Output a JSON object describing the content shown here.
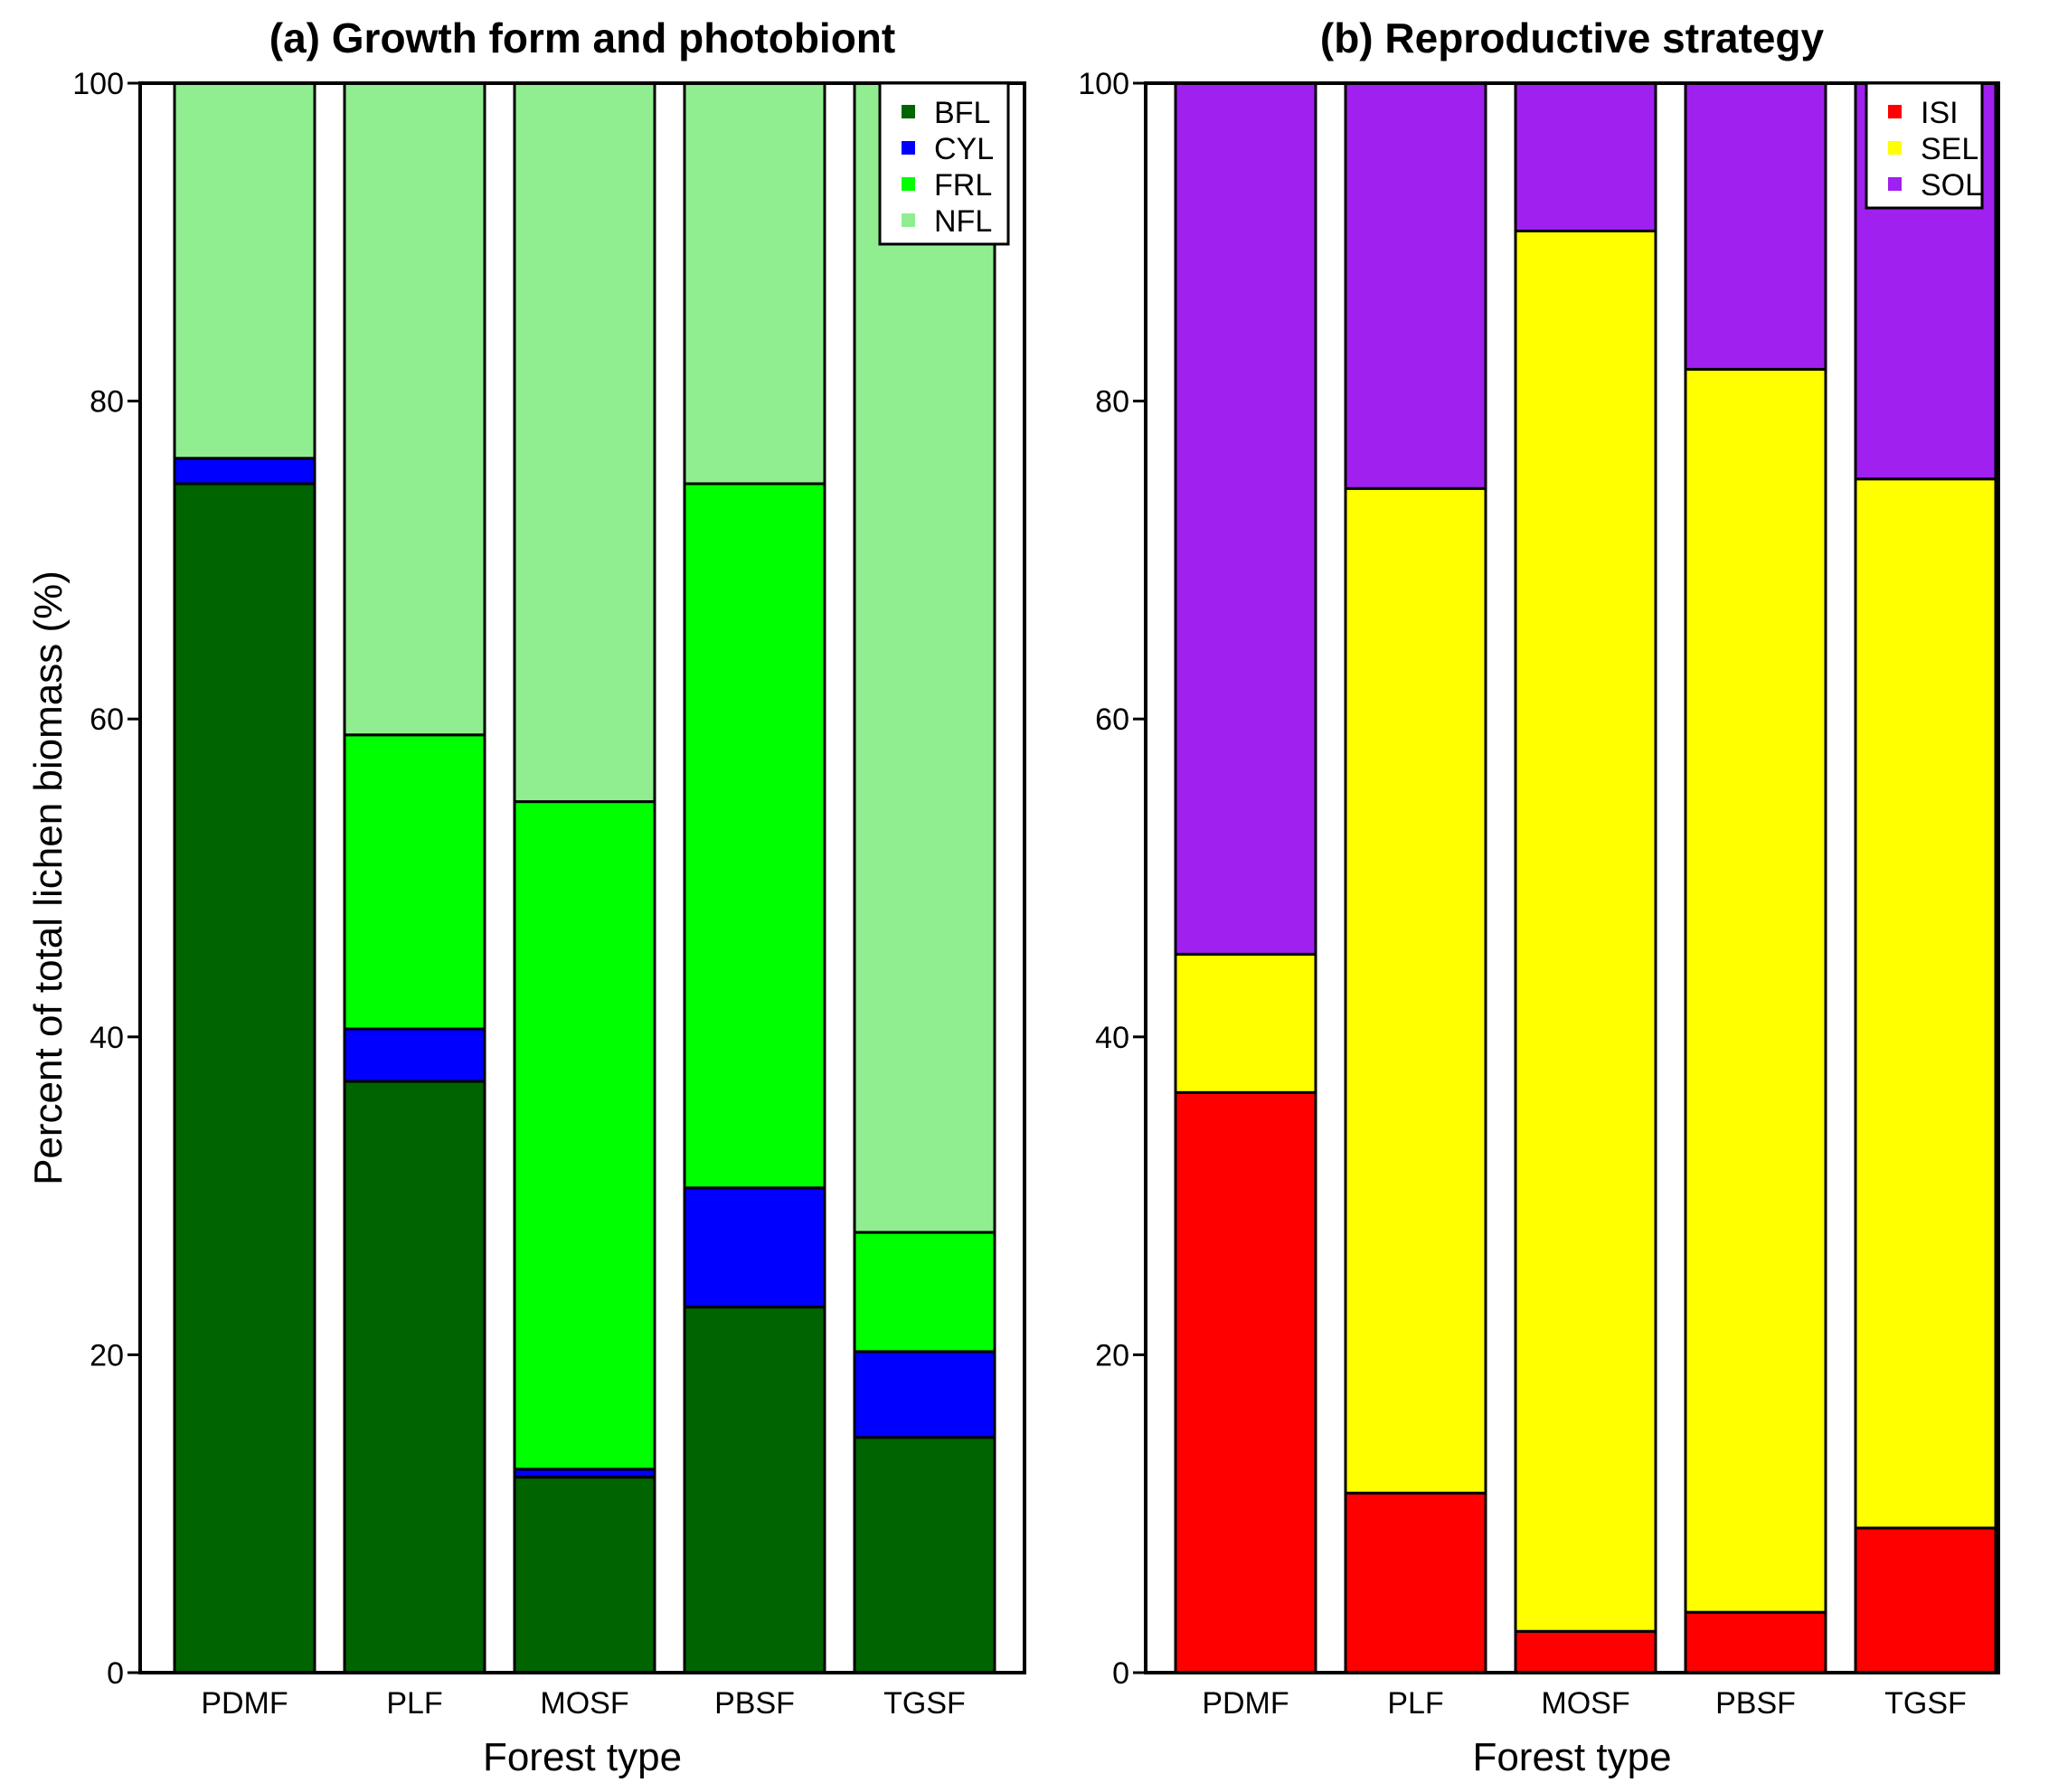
{
  "chart_data": [
    {
      "type": "bar",
      "stacked": true,
      "title": "(a) Growth form and photobiont",
      "xlabel": "Forest type",
      "ylabel": "Percent of total lichen biomass (%)",
      "ylim": [
        0,
        100
      ],
      "yticks": [
        "0",
        "20",
        "40",
        "60",
        "80",
        "100"
      ],
      "categories": [
        "PDMF",
        "PLF",
        "MOSF",
        "PBSF",
        "TGSF"
      ],
      "legend_position": "top-right",
      "series": [
        {
          "name": "BFL",
          "color": "#006400",
          "values": [
            74.8,
            37.2,
            12.3,
            23.0,
            14.8
          ]
        },
        {
          "name": "CYL",
          "color": "#0000ff",
          "values": [
            1.6,
            3.3,
            0.5,
            7.5,
            5.4
          ]
        },
        {
          "name": "FRL",
          "color": "#00ff00",
          "values": [
            0.0,
            18.5,
            42.0,
            44.3,
            7.5
          ]
        },
        {
          "name": "NFL",
          "color": "#90ee90",
          "values": [
            23.6,
            41.0,
            45.2,
            25.2,
            72.3
          ]
        }
      ]
    },
    {
      "type": "bar",
      "stacked": true,
      "title": "(b) Reproductive strategy",
      "xlabel": "Forest type",
      "ylabel": "",
      "ylim": [
        0,
        100
      ],
      "yticks": [
        "0",
        "20",
        "40",
        "60",
        "80",
        "100"
      ],
      "categories": [
        "PDMF",
        "PLF",
        "MOSF",
        "PBSF",
        "TGSF"
      ],
      "legend_position": "top-right",
      "series": [
        {
          "name": "ISI",
          "color": "#ff0000",
          "values": [
            36.5,
            11.3,
            2.6,
            3.8,
            9.1
          ]
        },
        {
          "name": "SEL",
          "color": "#ffff00",
          "values": [
            8.7,
            63.2,
            88.1,
            78.2,
            66.0
          ]
        },
        {
          "name": "SOL",
          "color": "#a020f0",
          "values": [
            54.8,
            25.5,
            9.3,
            18.0,
            24.9
          ]
        }
      ]
    }
  ]
}
